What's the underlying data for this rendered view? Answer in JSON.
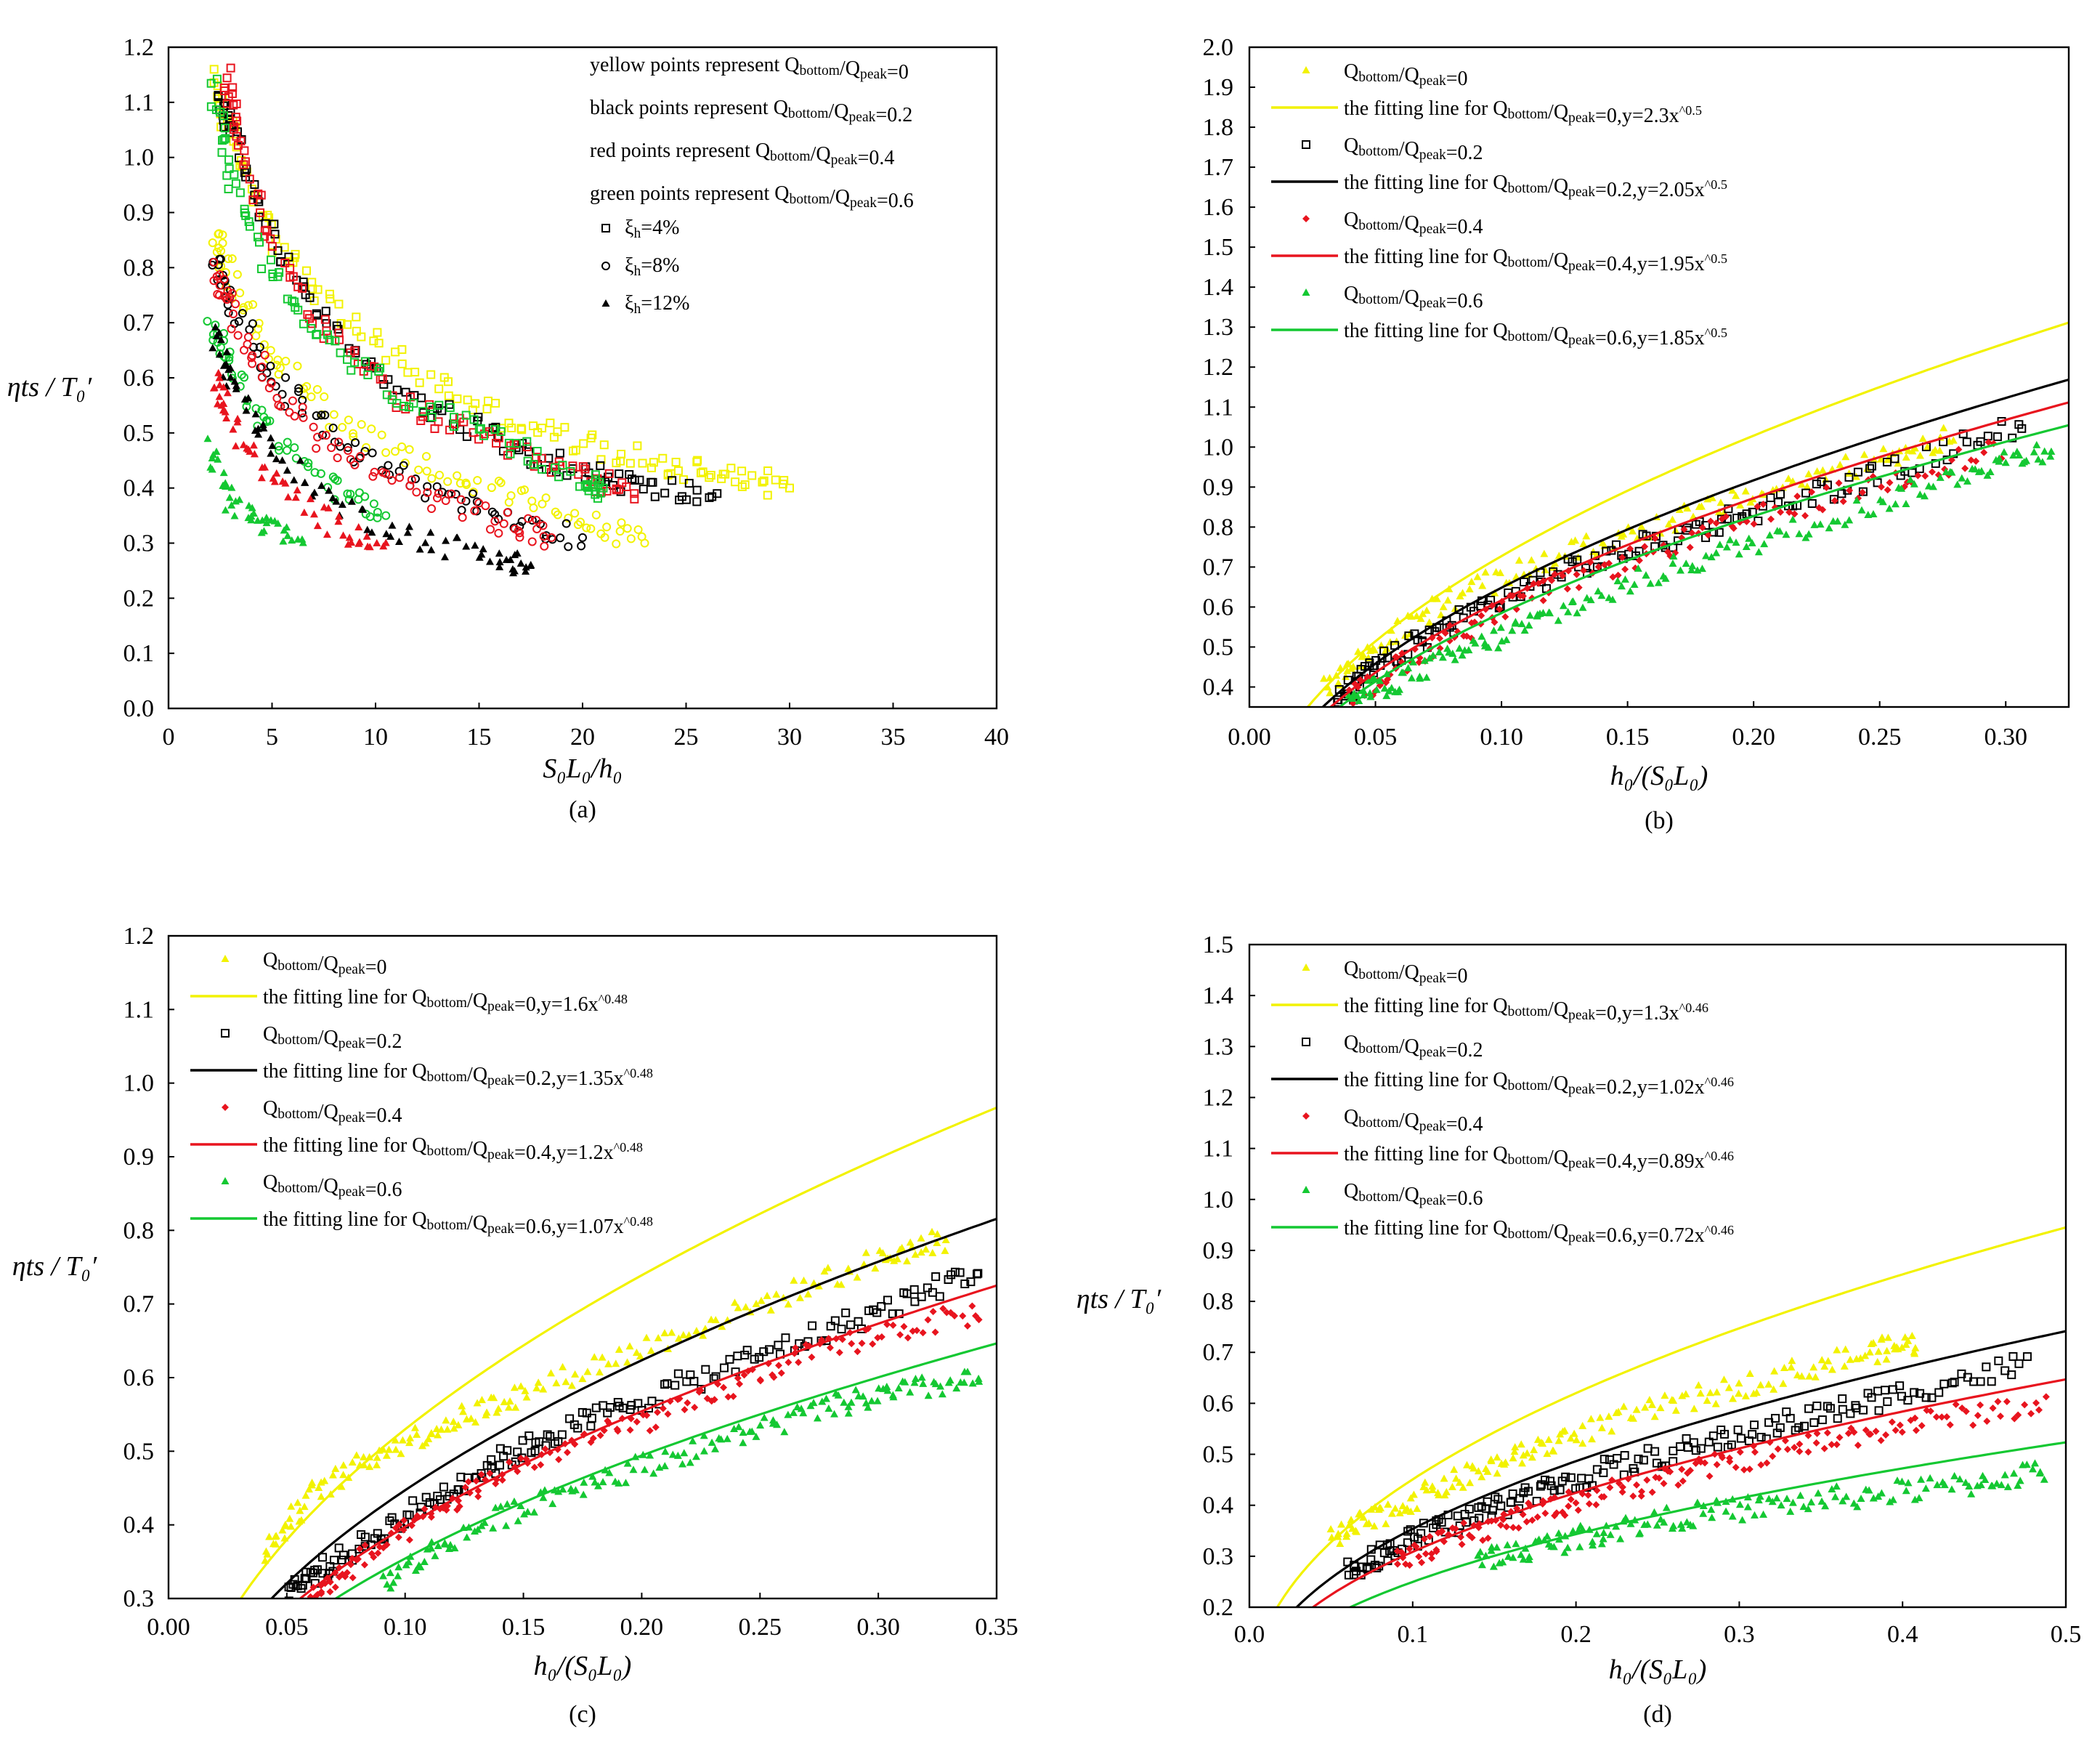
{
  "colors": {
    "yellow": "#f2f200",
    "black": "#000000",
    "red": "#e8141e",
    "green": "#14c832"
  },
  "chart_data": [
    {
      "type": "scatter",
      "panel_label": "(a)",
      "xlabel": "S₀L₀/h₀",
      "ylabel": "ηts / T₀′",
      "xlim": [
        0,
        40
      ],
      "ylim": [
        0,
        1.2
      ],
      "xticks": [
        "0",
        "5",
        "10",
        "15",
        "20",
        "25",
        "30",
        "35",
        "40"
      ],
      "yticks": [
        "0.0",
        "0.1",
        "0.2",
        "0.3",
        "0.4",
        "0.5",
        "0.6",
        "0.7",
        "0.8",
        "0.9",
        "1.0",
        "1.1",
        "1.2"
      ],
      "legend_position": "top-right",
      "legend": [
        "yellow points represent Qbottom/Qpeak=0",
        "black points represent Qbottom/Qpeak=0.2",
        "red points represent Qbottom/Qpeak=0.4",
        "green points represent Qbottom/Qpeak=0.6",
        "ξh=4%",
        "ξh=8%",
        "ξh=12%"
      ],
      "series": [
        {
          "name": "Qbottom/Qpeak=0, ξh=4%",
          "color": "yellow",
          "marker": "square",
          "x": [
            2.2,
            3,
            5,
            8,
            12,
            16,
            20,
            24,
            27,
            30
          ],
          "y": [
            1.14,
            1.04,
            0.86,
            0.72,
            0.61,
            0.53,
            0.48,
            0.44,
            0.43,
            0.4
          ]
        },
        {
          "name": "Qbottom/Qpeak=0.2, ξh=4%",
          "color": "black",
          "marker": "square",
          "x": [
            2.5,
            3,
            5,
            8,
            12,
            16,
            20,
            23,
            26.5
          ],
          "y": [
            1.1,
            1.06,
            0.85,
            0.68,
            0.56,
            0.49,
            0.43,
            0.4,
            0.39
          ]
        },
        {
          "name": "Qbottom/Qpeak=0.4, ξh=4%",
          "color": "red",
          "marker": "square",
          "x": [
            2.8,
            3.2,
            5,
            8,
            12,
            16,
            20,
            22.5
          ],
          "y": [
            1.14,
            1.05,
            0.84,
            0.66,
            0.54,
            0.47,
            0.42,
            0.39
          ]
        },
        {
          "name": "Qbottom/Qpeak=0.6, ξh=4%",
          "color": "green",
          "marker": "square",
          "x": [
            2.1,
            3,
            5,
            8,
            12,
            16,
            20,
            21
          ],
          "y": [
            1.14,
            0.96,
            0.78,
            0.65,
            0.55,
            0.48,
            0.42,
            0.4
          ]
        },
        {
          "name": "Qbottom/Qpeak=0, ξh=8%",
          "color": "yellow",
          "marker": "circle",
          "x": [
            2.2,
            3,
            5,
            8,
            12,
            16,
            20,
            23
          ],
          "y": [
            0.86,
            0.78,
            0.64,
            0.53,
            0.45,
            0.39,
            0.34,
            0.3
          ]
        },
        {
          "name": "Qbottom/Qpeak=0.2, ξh=8%",
          "color": "black",
          "marker": "circle",
          "x": [
            2.3,
            3,
            5,
            8,
            12,
            16,
            20
          ],
          "y": [
            0.82,
            0.74,
            0.6,
            0.49,
            0.41,
            0.35,
            0.31
          ]
        },
        {
          "name": "Qbottom/Qpeak=0.4, ξh=8%",
          "color": "red",
          "marker": "circle",
          "x": [
            2.2,
            3,
            5,
            8,
            12,
            16,
            18.5
          ],
          "y": [
            0.8,
            0.72,
            0.58,
            0.47,
            0.39,
            0.34,
            0.31
          ]
        },
        {
          "name": "Qbottom/Qpeak=0.6, ξh=8%",
          "color": "green",
          "marker": "circle",
          "x": [
            2.1,
            3,
            5,
            8,
            10.5
          ],
          "y": [
            0.7,
            0.62,
            0.5,
            0.4,
            0.35
          ]
        },
        {
          "name": "Qbottom/Qpeak=0.2, ξh=12%",
          "color": "black",
          "marker": "triangle",
          "x": [
            2.2,
            3,
            5,
            8,
            12,
            16,
            17.5
          ],
          "y": [
            0.68,
            0.6,
            0.47,
            0.37,
            0.31,
            0.27,
            0.26
          ]
        },
        {
          "name": "Qbottom/Qpeak=0.4, ξh=12%",
          "color": "red",
          "marker": "triangle",
          "x": [
            2.2,
            3,
            5,
            8,
            10.5
          ],
          "y": [
            0.6,
            0.52,
            0.41,
            0.33,
            0.3
          ]
        },
        {
          "name": "Qbottom/Qpeak=0.6, ξh=12%",
          "color": "green",
          "marker": "triangle",
          "x": [
            2.0,
            3,
            4.5,
            6.5
          ],
          "y": [
            0.47,
            0.38,
            0.33,
            0.3
          ]
        }
      ]
    },
    {
      "type": "scatter",
      "panel_label": "(b)",
      "xlabel": "h₀/(S₀L₀)",
      "ylabel": "",
      "xlim": [
        0,
        0.325
      ],
      "ylim": [
        0.35,
        2.0
      ],
      "xticks": [
        "0.00",
        "0.05",
        "0.10",
        "0.15",
        "0.20",
        "0.25",
        "0.30"
      ],
      "yticks": [
        "0.4",
        "0.5",
        "0.6",
        "0.7",
        "0.8",
        "0.9",
        "1.0",
        "1.1",
        "1.2",
        "1.3",
        "1.4",
        "1.5",
        "1.6",
        "1.7",
        "1.8",
        "1.9",
        "2.0"
      ],
      "legend_position": "top-left",
      "legend": [
        "Qbottom/Qpeak=0",
        "the fitting line for Qbottom/Qpeak=0,y=2.3x^0.5",
        "Qbottom/Qpeak=0.2",
        "the fitting line for Qbottom/Qpeak=0.2,y=2.05x^0.5",
        "Qbottom/Qpeak=0.4",
        "the fitting line for Qbottom/Qpeak=0.4,y=1.95x^0.5",
        "Qbottom/Qpeak=0.6",
        "the fitting line for Qbottom/Qpeak=0.6,y=1.85x^0.5"
      ],
      "fits": [
        {
          "color": "yellow",
          "coef": 2.3,
          "exp": 0.5
        },
        {
          "color": "black",
          "coef": 2.05,
          "exp": 0.5
        },
        {
          "color": "red",
          "coef": 1.95,
          "exp": 0.5
        },
        {
          "color": "green",
          "coef": 1.85,
          "exp": 0.5
        }
      ],
      "scatter": [
        {
          "color": "yellow",
          "marker": "triangle",
          "x": [
            0.03,
            0.05,
            0.08,
            0.12,
            0.16,
            0.2,
            0.25,
            0.28
          ],
          "y": [
            0.4,
            0.5,
            0.62,
            0.72,
            0.8,
            0.88,
            0.97,
            1.03
          ]
        },
        {
          "color": "black",
          "marker": "square",
          "x": [
            0.035,
            0.05,
            0.08,
            0.12,
            0.16,
            0.2,
            0.25,
            0.31
          ],
          "y": [
            0.36,
            0.45,
            0.56,
            0.68,
            0.76,
            0.84,
            0.93,
            1.07
          ]
        },
        {
          "color": "red",
          "marker": "diamond",
          "x": [
            0.04,
            0.06,
            0.09,
            0.12,
            0.16,
            0.2,
            0.25,
            0.3
          ],
          "y": [
            0.37,
            0.46,
            0.56,
            0.65,
            0.74,
            0.82,
            0.91,
            1.0
          ]
        },
        {
          "color": "green",
          "marker": "triangle",
          "x": [
            0.04,
            0.06,
            0.09,
            0.12,
            0.16,
            0.2,
            0.25,
            0.29,
            0.32
          ],
          "y": [
            0.37,
            0.42,
            0.5,
            0.58,
            0.68,
            0.76,
            0.86,
            0.95,
            1.0
          ]
        }
      ]
    },
    {
      "type": "scatter",
      "panel_label": "(c)",
      "xlabel": "h₀/(S₀L₀)",
      "ylabel": "ηts / T₀′",
      "xlim": [
        0,
        0.35
      ],
      "ylim": [
        0.3,
        1.2
      ],
      "xticks": [
        "0.00",
        "0.05",
        "0.10",
        "0.15",
        "0.20",
        "0.25",
        "0.30",
        "0.35"
      ],
      "yticks": [
        "0.3",
        "0.4",
        "0.5",
        "0.6",
        "0.7",
        "0.8",
        "0.9",
        "1.0",
        "1.1",
        "1.2"
      ],
      "legend_position": "top-left",
      "legend": [
        "Qbottom/Qpeak=0",
        "the fitting line for Qbottom/Qpeak=0,y=1.6x^0.48",
        "Qbottom/Qpeak=0.2",
        "the fitting line for Qbottom/Qpeak=0.2,y=1.35x^0.48",
        "Qbottom/Qpeak=0.4",
        "the fitting line for Qbottom/Qpeak=0.4,y=1.2x^0.48",
        "Qbottom/Qpeak=0.6",
        "the fitting line for Qbottom/Qpeak=0.6,y=1.07x^0.48"
      ],
      "fits": [
        {
          "color": "yellow",
          "coef": 1.6,
          "exp": 0.48
        },
        {
          "color": "black",
          "coef": 1.35,
          "exp": 0.48
        },
        {
          "color": "red",
          "coef": 1.2,
          "exp": 0.48
        },
        {
          "color": "green",
          "coef": 1.07,
          "exp": 0.48
        }
      ],
      "scatter": [
        {
          "color": "yellow",
          "marker": "triangle",
          "x": [
            0.04,
            0.06,
            0.09,
            0.12,
            0.15,
            0.2,
            0.25,
            0.3,
            0.33
          ],
          "y": [
            0.36,
            0.44,
            0.5,
            0.54,
            0.58,
            0.64,
            0.7,
            0.76,
            0.79
          ]
        },
        {
          "color": "black",
          "marker": "square",
          "x": [
            0.05,
            0.07,
            0.1,
            0.13,
            0.16,
            0.2,
            0.25,
            0.3,
            0.345
          ],
          "y": [
            0.31,
            0.35,
            0.41,
            0.47,
            0.52,
            0.57,
            0.63,
            0.69,
            0.75
          ]
        },
        {
          "color": "red",
          "marker": "diamond",
          "x": [
            0.06,
            0.08,
            0.11,
            0.14,
            0.18,
            0.22,
            0.26,
            0.3,
            0.345
          ],
          "y": [
            0.3,
            0.35,
            0.41,
            0.47,
            0.52,
            0.56,
            0.62,
            0.66,
            0.69
          ]
        },
        {
          "color": "green",
          "marker": "triangle",
          "x": [
            0.09,
            0.12,
            0.16,
            0.2,
            0.24,
            0.28,
            0.31,
            0.345
          ],
          "y": [
            0.32,
            0.38,
            0.44,
            0.48,
            0.52,
            0.56,
            0.58,
            0.6
          ]
        }
      ]
    },
    {
      "type": "scatter",
      "panel_label": "(d)",
      "xlabel": "h₀/(S₀L₀)",
      "ylabel": "ηts / T₀′",
      "xlim": [
        0,
        0.5
      ],
      "ylim": [
        0.2,
        1.5
      ],
      "xticks": [
        "0.0",
        "0.1",
        "0.2",
        "0.3",
        "0.4",
        "0.5"
      ],
      "yticks": [
        "0.2",
        "0.3",
        "0.4",
        "0.5",
        "0.6",
        "0.7",
        "0.8",
        "0.9",
        "1.0",
        "1.1",
        "1.2",
        "1.3",
        "1.4",
        "1.5"
      ],
      "legend_position": "top-left",
      "legend": [
        "Qbottom/Qpeak=0",
        "the fitting line for Qbottom/Qpeak=0,y=1.3x^0.46",
        "Qbottom/Qpeak=0.2",
        "the fitting line for Qbottom/Qpeak=0.2,y=1.02x^0.46",
        "Qbottom/Qpeak=0.4",
        "the fitting line for Qbottom/Qpeak=0.4,y=0.89x^0.46",
        "Qbottom/Qpeak=0.6",
        "the fitting line for Qbottom/Qpeak=0.6,y=0.72x^0.46"
      ],
      "fits": [
        {
          "color": "yellow",
          "coef": 1.3,
          "exp": 0.46
        },
        {
          "color": "black",
          "coef": 1.02,
          "exp": 0.46
        },
        {
          "color": "red",
          "coef": 0.89,
          "exp": 0.46
        },
        {
          "color": "green",
          "coef": 0.72,
          "exp": 0.46
        }
      ],
      "scatter": [
        {
          "color": "yellow",
          "marker": "triangle",
          "x": [
            0.05,
            0.08,
            0.12,
            0.16,
            0.2,
            0.26,
            0.32,
            0.38,
            0.41
          ],
          "y": [
            0.33,
            0.38,
            0.44,
            0.49,
            0.54,
            0.6,
            0.65,
            0.7,
            0.72
          ]
        },
        {
          "color": "black",
          "marker": "square",
          "x": [
            0.06,
            0.09,
            0.13,
            0.17,
            0.22,
            0.28,
            0.34,
            0.4,
            0.48
          ],
          "y": [
            0.27,
            0.32,
            0.37,
            0.42,
            0.47,
            0.52,
            0.57,
            0.62,
            0.68
          ]
        },
        {
          "color": "red",
          "marker": "diamond",
          "x": [
            0.09,
            0.12,
            0.16,
            0.2,
            0.25,
            0.3,
            0.36,
            0.42,
            0.49
          ],
          "y": [
            0.29,
            0.33,
            0.37,
            0.41,
            0.45,
            0.49,
            0.53,
            0.57,
            0.6
          ]
        },
        {
          "color": "green",
          "marker": "triangle",
          "x": [
            0.14,
            0.18,
            0.22,
            0.27,
            0.32,
            0.38,
            0.44,
            0.49
          ],
          "y": [
            0.29,
            0.32,
            0.35,
            0.38,
            0.4,
            0.42,
            0.44,
            0.47
          ]
        }
      ]
    }
  ]
}
